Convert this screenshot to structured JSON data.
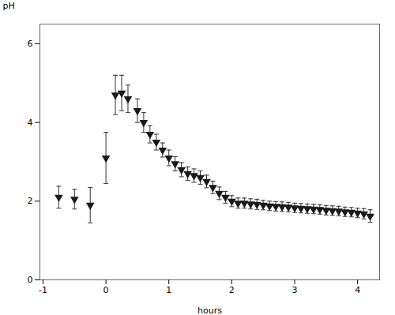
{
  "chart_data": {
    "type": "scatter",
    "x": [
      -0.75,
      -0.5,
      -0.25,
      0.0,
      0.15,
      0.25,
      0.35,
      0.5,
      0.6,
      0.7,
      0.8,
      0.9,
      1.0,
      1.1,
      1.2,
      1.3,
      1.4,
      1.5,
      1.6,
      1.7,
      1.8,
      1.9,
      2.0,
      2.1,
      2.2,
      2.3,
      2.4,
      2.5,
      2.6,
      2.7,
      2.8,
      2.9,
      3.0,
      3.1,
      3.2,
      3.3,
      3.4,
      3.5,
      3.6,
      3.7,
      3.8,
      3.9,
      4.0,
      4.1,
      4.2
    ],
    "values": [
      2.1,
      2.05,
      1.9,
      3.1,
      4.7,
      4.75,
      4.6,
      4.3,
      4.0,
      3.7,
      3.5,
      3.3,
      3.1,
      2.95,
      2.8,
      2.7,
      2.65,
      2.6,
      2.5,
      2.35,
      2.2,
      2.1,
      2.0,
      1.95,
      1.95,
      1.93,
      1.92,
      1.9,
      1.88,
      1.87,
      1.86,
      1.85,
      1.83,
      1.82,
      1.81,
      1.8,
      1.79,
      1.77,
      1.76,
      1.75,
      1.73,
      1.72,
      1.7,
      1.68,
      1.62
    ],
    "yerr": [
      0.28,
      0.25,
      0.45,
      0.65,
      0.5,
      0.45,
      0.35,
      0.3,
      0.25,
      0.22,
      0.2,
      0.18,
      0.2,
      0.18,
      0.18,
      0.17,
      0.17,
      0.17,
      0.16,
      0.16,
      0.16,
      0.15,
      0.14,
      0.13,
      0.13,
      0.13,
      0.13,
      0.12,
      0.12,
      0.12,
      0.12,
      0.12,
      0.12,
      0.12,
      0.12,
      0.12,
      0.12,
      0.12,
      0.12,
      0.12,
      0.12,
      0.12,
      0.12,
      0.13,
      0.16
    ],
    "color": "#1a1a1a",
    "marker": "triangle-down",
    "xlabel": "hours",
    "ylabel": "pH",
    "xlim": [
      -1.05,
      4.35
    ],
    "ylim": [
      0,
      6.5
    ],
    "xticks": [
      -1,
      0,
      1,
      2,
      3,
      4
    ],
    "yticks": [
      0,
      2,
      4,
      6
    ]
  }
}
